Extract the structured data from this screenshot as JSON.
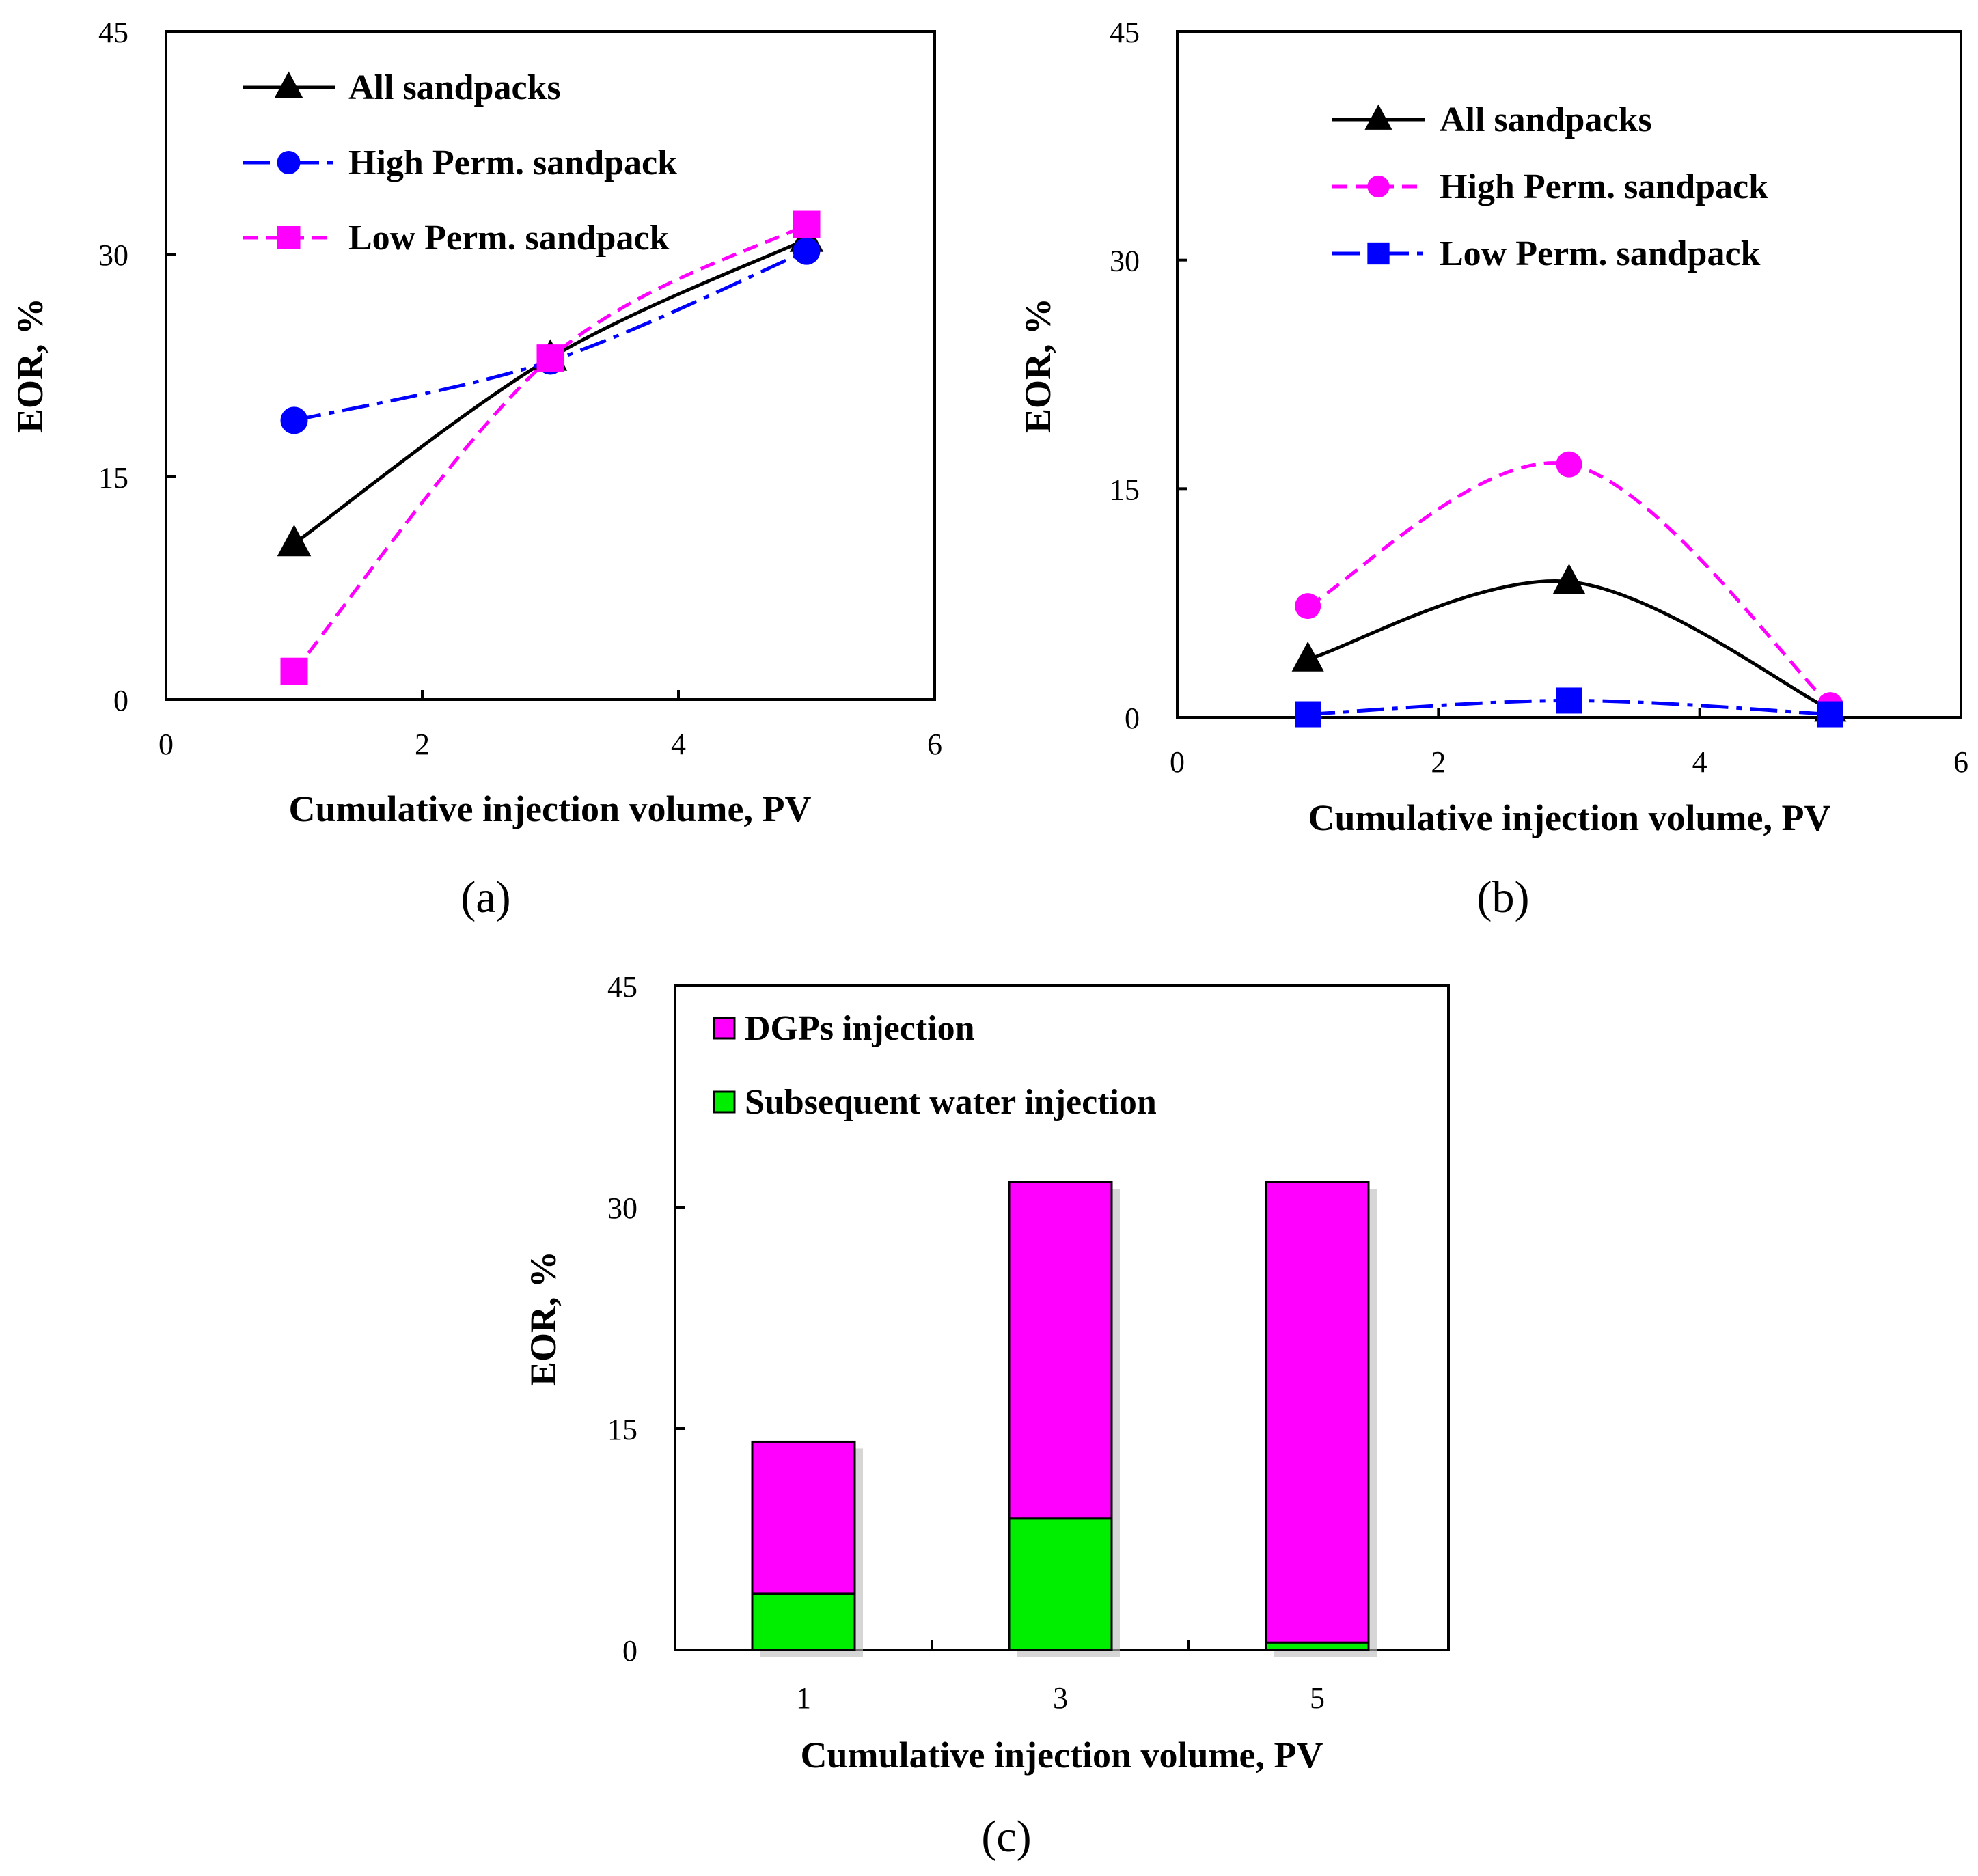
{
  "chart_data": [
    {
      "id": "a",
      "panel_label": "(a)",
      "type": "line",
      "xlabel": "Cumulative  injection  volume, PV",
      "ylabel": "EOR, %",
      "xlim": [
        0,
        6
      ],
      "ylim": [
        0,
        45
      ],
      "xticks": [
        "0",
        "2",
        "4",
        "6"
      ],
      "yticks": [
        "0",
        "15",
        "30",
        "45"
      ],
      "legend_position": "top-left",
      "series": [
        {
          "name": "All sandpacks",
          "color": "#000000",
          "dash": "solid",
          "marker": "triangle",
          "x": [
            1,
            3,
            5
          ],
          "y": [
            10.5,
            23,
            31
          ]
        },
        {
          "name": "High Perm. sandpack",
          "color": "#0000ff",
          "dash": "dashdot",
          "marker": "circle",
          "x": [
            1,
            3,
            5
          ],
          "y": [
            18.8,
            22.8,
            30.2
          ]
        },
        {
          "name": "Low Perm. sandpack",
          "color": "#ff00ff",
          "dash": "dash",
          "marker": "square",
          "x": [
            1,
            3,
            5
          ],
          "y": [
            1.9,
            23,
            32
          ]
        }
      ]
    },
    {
      "id": "b",
      "panel_label": "(b)",
      "type": "line",
      "xlabel": "Cumulative  injection  volume, PV",
      "ylabel": "EOR, %",
      "xlim": [
        0,
        6
      ],
      "ylim": [
        0,
        45
      ],
      "xticks": [
        "0",
        "2",
        "4",
        "6"
      ],
      "yticks": [
        "0",
        "15",
        "30",
        "45"
      ],
      "legend_position": "top-left",
      "series": [
        {
          "name": "All sandpacks",
          "color": "#000000",
          "dash": "solid",
          "marker": "triangle",
          "x": [
            1,
            3,
            5
          ],
          "y": [
            3.8,
            8.9,
            0.5
          ]
        },
        {
          "name": "High Perm. sandpack",
          "color": "#ff00ff",
          "dash": "dash",
          "marker": "circle",
          "x": [
            1,
            3,
            5
          ],
          "y": [
            7.3,
            16.6,
            0.8
          ]
        },
        {
          "name": "Low Perm. sandpack",
          "color": "#0000ff",
          "dash": "dashdot",
          "marker": "square",
          "x": [
            1,
            3,
            5
          ],
          "y": [
            0.2,
            1.1,
            0.2
          ]
        }
      ]
    },
    {
      "id": "c",
      "panel_label": "(c)",
      "type": "bar",
      "stacked": true,
      "xlabel": "Cumulative  injection  volume, PV",
      "ylabel": "EOR, %",
      "categories": [
        "1",
        "3",
        "5"
      ],
      "ylim": [
        0,
        45
      ],
      "yticks": [
        "0",
        "15",
        "30",
        "45"
      ],
      "legend_position": "top-left",
      "series": [
        {
          "name": "Subsequent water injection",
          "color": "#00ee00",
          "values": [
            3.8,
            8.9,
            0.5
          ]
        },
        {
          "name": "DGPs injection",
          "color": "#ff00ff",
          "values": [
            10.3,
            22.8,
            31.2
          ]
        }
      ],
      "legend_order": [
        "DGPs injection",
        "Subsequent water injection"
      ]
    }
  ]
}
